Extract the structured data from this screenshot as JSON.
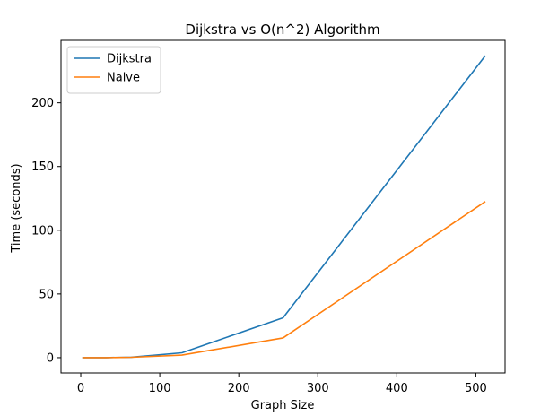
{
  "chart_data": {
    "type": "line",
    "title": "Dijkstra vs O(n^2) Algorithm",
    "xlabel": "Graph Size",
    "ylabel": "Time (seconds)",
    "xlim": [
      -25,
      537
    ],
    "ylim": [
      -12,
      249
    ],
    "xticks": [
      0,
      100,
      200,
      300,
      400,
      500
    ],
    "yticks": [
      0,
      50,
      100,
      150,
      200
    ],
    "grid": false,
    "legend_position": "upper-left",
    "x": [
      2,
      4,
      8,
      16,
      32,
      64,
      128,
      256,
      512
    ],
    "series": [
      {
        "name": "Dijkstra",
        "color": "#1f77b4",
        "values": [
          0.0,
          0.0,
          0.0,
          0.01,
          0.05,
          0.4,
          3.8,
          31.3,
          237.0
        ]
      },
      {
        "name": "Naive",
        "color": "#ff7f0e",
        "values": [
          0.0,
          0.0,
          0.0,
          0.01,
          0.04,
          0.3,
          2.0,
          15.5,
          122.5
        ]
      }
    ]
  }
}
